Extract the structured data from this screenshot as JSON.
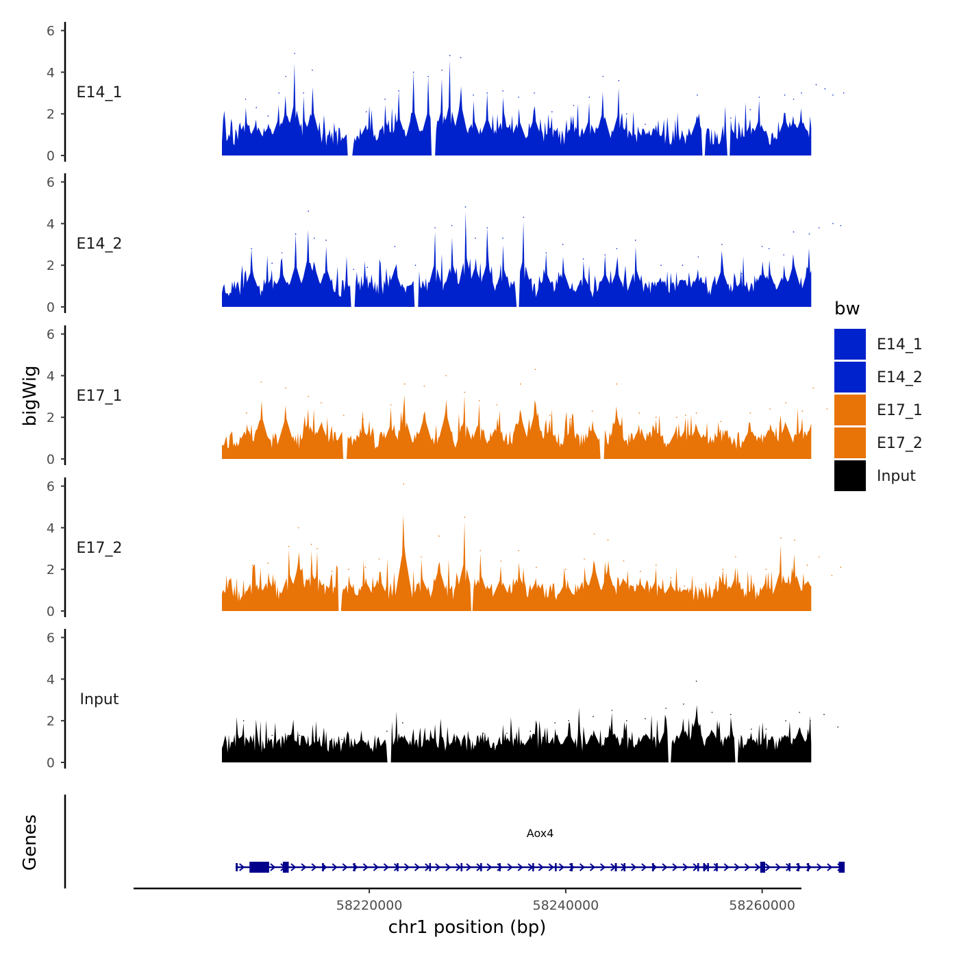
{
  "chart_data": {
    "type": "area",
    "title": "",
    "ylabel": "bigWig",
    "xlabel": "chr1 position (bp)",
    "genes_label": "Genes",
    "ylim": [
      0,
      6.5
    ],
    "y_ticks": [
      "0",
      "2",
      "4",
      "6"
    ],
    "xlim": [
      58196000,
      58264000
    ],
    "x_ticks": [
      58220000,
      58240000,
      58260000
    ],
    "x_tick_labels": [
      "58220000",
      "58240000",
      "58260000"
    ],
    "x_range": [
      58205000,
      58265000
    ],
    "legend": {
      "title": "bw",
      "position": "right",
      "entries": [
        {
          "label": "E14_1",
          "color": "#0022CC"
        },
        {
          "label": "E14_2",
          "color": "#0022CC"
        },
        {
          "label": "E17_1",
          "color": "#E87307"
        },
        {
          "label": "E17_2",
          "color": "#E87307"
        },
        {
          "label": "Input",
          "color": "#000000"
        }
      ]
    },
    "series": [
      {
        "name": "E14_1",
        "color": "#0022CC",
        "seed": 11,
        "peaks": [
          [
            58207400,
            2.7
          ],
          [
            58208500,
            2.3
          ],
          [
            58209700,
            1.9
          ],
          [
            58210800,
            3.0
          ],
          [
            58211500,
            3.8
          ],
          [
            58212400,
            4.9
          ],
          [
            58213300,
            3.0
          ],
          [
            58214200,
            4.1
          ],
          [
            58219700,
            2.1
          ],
          [
            58221600,
            2.7
          ],
          [
            58223000,
            3.1
          ],
          [
            58224500,
            4.0
          ],
          [
            58226000,
            3.8
          ],
          [
            58227400,
            4.1
          ],
          [
            58228200,
            4.8
          ],
          [
            58229300,
            4.7
          ],
          [
            58230600,
            2.9
          ],
          [
            58232000,
            3.0
          ],
          [
            58233600,
            3.1
          ],
          [
            58235200,
            2.8
          ],
          [
            58236800,
            3.0
          ],
          [
            58238600,
            2.1
          ],
          [
            58240800,
            2.4
          ],
          [
            58242400,
            2.8
          ],
          [
            58243800,
            3.8
          ],
          [
            58245400,
            3.6
          ],
          [
            58246200,
            2.0
          ],
          [
            58248100,
            1.5
          ],
          [
            58253400,
            2.9
          ],
          [
            58256800,
            1.8
          ],
          [
            58258800,
            2.2
          ],
          [
            58259700,
            2.8
          ],
          [
            58262300,
            2.9
          ],
          [
            58263200,
            2.7
          ],
          [
            58264000,
            3.0
          ],
          [
            58265500,
            3.4
          ],
          [
            58266400,
            3.2
          ],
          [
            58267200,
            2.9
          ],
          [
            58268300,
            3.0
          ]
        ],
        "dips": [
          [
            58217800,
            58218300
          ],
          [
            58226300,
            58226700
          ],
          [
            58253900,
            58254200
          ],
          [
            58256400,
            58256700
          ]
        ]
      },
      {
        "name": "E14_2",
        "color": "#0022CC",
        "seed": 23,
        "peaks": [
          [
            58208000,
            2.8
          ],
          [
            58210100,
            2.1
          ],
          [
            58211100,
            2.6
          ],
          [
            58212500,
            3.5
          ],
          [
            58213800,
            4.6
          ],
          [
            58214400,
            3.3
          ],
          [
            58215600,
            3.2
          ],
          [
            58218400,
            1.8
          ],
          [
            58219800,
            1.9
          ],
          [
            58222600,
            2.9
          ],
          [
            58224700,
            2.0
          ],
          [
            58226700,
            3.8
          ],
          [
            58228400,
            3.9
          ],
          [
            58229800,
            4.8
          ],
          [
            58230800,
            3.3
          ],
          [
            58232000,
            3.8
          ],
          [
            58233600,
            3.3
          ],
          [
            58235700,
            4.3
          ],
          [
            58238000,
            2.6
          ],
          [
            58239700,
            3.0
          ],
          [
            58241800,
            2.3
          ],
          [
            58244000,
            2.5
          ],
          [
            58245200,
            2.8
          ],
          [
            58247100,
            3.2
          ],
          [
            58249700,
            2.0
          ],
          [
            58251900,
            2.0
          ],
          [
            58253500,
            2.4
          ],
          [
            58255900,
            3.0
          ],
          [
            58257900,
            1.6
          ],
          [
            58260000,
            2.9
          ],
          [
            58260700,
            2.8
          ],
          [
            58262200,
            2.5
          ],
          [
            58263200,
            3.6
          ],
          [
            58264800,
            3.5
          ],
          [
            58265800,
            3.8
          ],
          [
            58267200,
            4.0
          ],
          [
            58268000,
            3.9
          ]
        ],
        "dips": [
          [
            58218100,
            58218500
          ],
          [
            58224600,
            58225000
          ],
          [
            58234900,
            58235300
          ]
        ]
      },
      {
        "name": "E17_1",
        "color": "#E87307",
        "seed": 37,
        "peaks": [
          [
            58207500,
            2.2
          ],
          [
            58209000,
            3.7
          ],
          [
            58211500,
            3.4
          ],
          [
            58213800,
            3.0
          ],
          [
            58215100,
            2.7
          ],
          [
            58217400,
            2.1
          ],
          [
            58219400,
            1.9
          ],
          [
            58222200,
            2.6
          ],
          [
            58223600,
            3.6
          ],
          [
            58225600,
            3.5
          ],
          [
            58227800,
            4.0
          ],
          [
            58229700,
            3.2
          ],
          [
            58231200,
            2.8
          ],
          [
            58233000,
            2.6
          ],
          [
            58235400,
            3.6
          ],
          [
            58236900,
            4.3
          ],
          [
            58238400,
            2.1
          ],
          [
            58240500,
            1.9
          ],
          [
            58242700,
            2.3
          ],
          [
            58245200,
            3.6
          ],
          [
            58247500,
            2.2
          ],
          [
            58249200,
            2.0
          ],
          [
            58251300,
            2.0
          ],
          [
            58252200,
            2.1
          ],
          [
            58253300,
            2.2
          ],
          [
            58255800,
            1.8
          ],
          [
            58258800,
            2.2
          ],
          [
            58260800,
            2.4
          ],
          [
            58262400,
            2.7
          ],
          [
            58264100,
            2.3
          ],
          [
            58265200,
            3.4
          ],
          [
            58266600,
            2.4
          ],
          [
            58267800,
            3.5
          ],
          [
            58268300,
            3.4
          ]
        ],
        "dips": [
          [
            58217300,
            58217700
          ],
          [
            58243500,
            58243900
          ]
        ]
      },
      {
        "name": "E17_2",
        "color": "#E87307",
        "seed": 53,
        "peaks": [
          [
            58208100,
            2.2
          ],
          [
            58209700,
            2.3
          ],
          [
            58211800,
            3.1
          ],
          [
            58212800,
            4.0
          ],
          [
            58214100,
            3.2
          ],
          [
            58214700,
            3.0
          ],
          [
            58216200,
            1.9
          ],
          [
            58217900,
            2.0
          ],
          [
            58219600,
            2.1
          ],
          [
            58221000,
            2.5
          ],
          [
            58223500,
            6.1
          ],
          [
            58225300,
            2.6
          ],
          [
            58227100,
            3.6
          ],
          [
            58229700,
            4.5
          ],
          [
            58231300,
            2.9
          ],
          [
            58233400,
            2.4
          ],
          [
            58235200,
            2.9
          ],
          [
            58237000,
            2.1
          ],
          [
            58240000,
            2.0
          ],
          [
            58241900,
            2.5
          ],
          [
            58242900,
            3.7
          ],
          [
            58244300,
            3.4
          ],
          [
            58245900,
            2.4
          ],
          [
            58247600,
            1.9
          ],
          [
            58249200,
            2.2
          ],
          [
            58250700,
            1.6
          ],
          [
            58252100,
            1.2
          ],
          [
            58256000,
            2.0
          ],
          [
            58257300,
            2.6
          ],
          [
            58260400,
            2.0
          ],
          [
            58261900,
            3.5
          ],
          [
            58263300,
            3.4
          ],
          [
            58264600,
            2.2
          ],
          [
            58265800,
            2.6
          ],
          [
            58267100,
            1.7
          ],
          [
            58268000,
            2.1
          ]
        ],
        "dips": [
          [
            58216800,
            58217200
          ],
          [
            58230300,
            58230600
          ]
        ]
      },
      {
        "name": "Input",
        "color": "#000000",
        "seed": 71,
        "peaks": [
          [
            58207200,
            2.0
          ],
          [
            58210100,
            1.3
          ],
          [
            58211800,
            1.3
          ],
          [
            58212900,
            1.3
          ],
          [
            58214500,
            1.2
          ],
          [
            58217200,
            1.1
          ],
          [
            58219200,
            1.3
          ],
          [
            58221800,
            1.5
          ],
          [
            58223400,
            1.9
          ],
          [
            58226300,
            1.2
          ],
          [
            58228700,
            1.2
          ],
          [
            58231600,
            1.4
          ],
          [
            58234000,
            1.4
          ],
          [
            58236400,
            1.5
          ],
          [
            58238900,
            1.9
          ],
          [
            58240300,
            2.0
          ],
          [
            58242800,
            2.2
          ],
          [
            58244700,
            2.5
          ],
          [
            58246200,
            2.0
          ],
          [
            58248100,
            2.1
          ],
          [
            58250200,
            2.6
          ],
          [
            58252000,
            2.8
          ],
          [
            58253300,
            3.9
          ],
          [
            58254900,
            2.4
          ],
          [
            58256800,
            2.3
          ],
          [
            58258900,
            1.6
          ],
          [
            58260400,
            1.6
          ],
          [
            58262400,
            2.0
          ],
          [
            58263800,
            2.4
          ],
          [
            58264900,
            2.0
          ],
          [
            58266300,
            2.3
          ],
          [
            58267700,
            1.7
          ]
        ],
        "dips": [
          [
            58221800,
            58222200
          ],
          [
            58250400,
            58250700
          ],
          [
            58257200,
            58257600
          ]
        ]
      }
    ],
    "genes": [
      {
        "name": "Aox4",
        "strand": "+",
        "start": 58206400,
        "end": 58268400,
        "exons": [
          [
            58206400,
            58206600
          ],
          [
            58207800,
            58209800
          ],
          [
            58211200,
            58211800
          ],
          [
            58215200,
            58215300
          ],
          [
            58218400,
            58218500
          ],
          [
            58222800,
            58222900
          ],
          [
            58226100,
            58226200
          ],
          [
            58229300,
            58229400
          ],
          [
            58231300,
            58231400
          ],
          [
            58233200,
            58233300
          ],
          [
            58236600,
            58236700
          ],
          [
            58238900,
            58239000
          ],
          [
            58240500,
            58240700
          ],
          [
            58245000,
            58245200
          ],
          [
            58245900,
            58246000
          ],
          [
            58248800,
            58248900
          ],
          [
            58253400,
            58253500
          ],
          [
            58254000,
            58254100
          ],
          [
            58254400,
            58254500
          ],
          [
            58255300,
            58255400
          ],
          [
            58259800,
            58260300
          ],
          [
            58262700,
            58262800
          ],
          [
            58263600,
            58263700
          ],
          [
            58264600,
            58264700
          ],
          [
            58267800,
            58268400
          ]
        ]
      }
    ]
  }
}
